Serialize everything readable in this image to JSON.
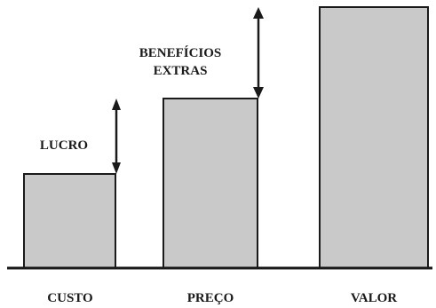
{
  "bars": [
    {
      "name": "custo",
      "label": "CUSTO"
    },
    {
      "name": "preco",
      "label": "PREÇO"
    },
    {
      "name": "valor",
      "label": "VALOR"
    }
  ],
  "annotations": {
    "lucro": "LUCRO",
    "beneficios_line1": "BENEFÍCIOS",
    "beneficios_line2": "EXTRAS"
  },
  "colors": {
    "bar_fill": "#c9c9c9",
    "ink": "#1a1a1a"
  }
}
